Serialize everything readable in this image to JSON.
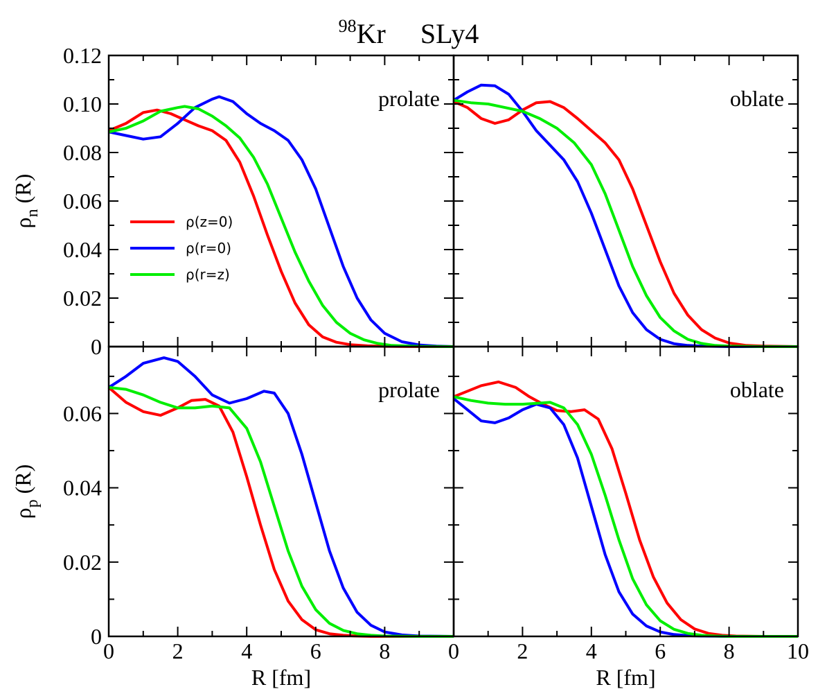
{
  "figure": {
    "title_superscript": "98",
    "title_nucleus": "Kr",
    "title_force": "SLy4"
  },
  "chart_data": [
    {
      "type": "line",
      "panel": "top-left",
      "label": "prolate",
      "ylabel_symbol": "ρ",
      "ylabel_sub": "n",
      "ylabel_arg": " (R)",
      "xlim": [
        0,
        10
      ],
      "ylim": [
        0,
        0.12
      ],
      "yticks": [
        0,
        0.02,
        0.04,
        0.06,
        0.08,
        0.1,
        0.12
      ],
      "yticklabels": [
        "0",
        "0.02",
        "0.04",
        "0.06",
        "0.08",
        "0.10",
        "0.12"
      ],
      "legend": {
        "position": "left-middle",
        "entries": [
          {
            "label": "ρ(z=0)",
            "color": "#ff0000"
          },
          {
            "label": "ρ(r=0)",
            "color": "#0000ff"
          },
          {
            "label": "ρ(r=z)",
            "color": "#00ee00"
          }
        ]
      },
      "series": [
        {
          "name": "ρ(z=0)",
          "color": "#ff0000",
          "x": [
            0,
            0.5,
            1.0,
            1.4,
            1.8,
            2.2,
            2.6,
            3.0,
            3.4,
            3.8,
            4.2,
            4.6,
            5.0,
            5.4,
            5.8,
            6.2,
            6.6,
            7.0,
            7.5,
            8.0,
            9.0,
            10.0
          ],
          "y": [
            0.089,
            0.092,
            0.0965,
            0.0975,
            0.096,
            0.0935,
            0.091,
            0.089,
            0.085,
            0.076,
            0.062,
            0.046,
            0.031,
            0.018,
            0.009,
            0.004,
            0.0018,
            0.0008,
            0.0003,
            0.0001,
            0,
            0
          ]
        },
        {
          "name": "ρ(r=0)",
          "color": "#0000ff",
          "x": [
            0,
            0.5,
            1.0,
            1.5,
            2.0,
            2.5,
            3.0,
            3.2,
            3.6,
            4.0,
            4.4,
            4.8,
            5.2,
            5.6,
            6.0,
            6.4,
            6.8,
            7.2,
            7.6,
            8.0,
            8.5,
            9.0,
            9.5,
            10.0
          ],
          "y": [
            0.0885,
            0.087,
            0.0855,
            0.0865,
            0.092,
            0.0985,
            0.102,
            0.103,
            0.101,
            0.096,
            0.092,
            0.089,
            0.085,
            0.077,
            0.065,
            0.049,
            0.033,
            0.02,
            0.011,
            0.0055,
            0.002,
            0.0007,
            0.0002,
            0
          ]
        },
        {
          "name": "ρ(r=z)",
          "color": "#00ee00",
          "x": [
            0,
            0.5,
            1.0,
            1.5,
            2.0,
            2.2,
            2.6,
            3.0,
            3.4,
            3.8,
            4.2,
            4.6,
            5.0,
            5.4,
            5.8,
            6.2,
            6.6,
            7.0,
            7.4,
            7.8,
            8.2,
            9.0,
            10.0
          ],
          "y": [
            0.0885,
            0.09,
            0.093,
            0.097,
            0.0985,
            0.099,
            0.098,
            0.095,
            0.091,
            0.086,
            0.078,
            0.067,
            0.053,
            0.039,
            0.027,
            0.017,
            0.01,
            0.0055,
            0.0028,
            0.0013,
            0.0005,
            0.0001,
            0
          ]
        }
      ]
    },
    {
      "type": "line",
      "panel": "top-right",
      "label": "oblate",
      "xlim": [
        0,
        10
      ],
      "ylim": [
        0,
        0.12
      ],
      "series": [
        {
          "name": "ρ(z=0)",
          "color": "#ff0000",
          "x": [
            0,
            0.4,
            0.8,
            1.2,
            1.6,
            2.0,
            2.4,
            2.8,
            3.2,
            3.6,
            4.0,
            4.4,
            4.8,
            5.2,
            5.6,
            6.0,
            6.4,
            6.8,
            7.2,
            7.6,
            8.0,
            8.5,
            9.0,
            10.0
          ],
          "y": [
            0.101,
            0.0985,
            0.094,
            0.092,
            0.0935,
            0.0975,
            0.1005,
            0.101,
            0.0985,
            0.094,
            0.089,
            0.084,
            0.077,
            0.065,
            0.05,
            0.035,
            0.022,
            0.013,
            0.007,
            0.0035,
            0.0015,
            0.0005,
            0.0002,
            0
          ]
        },
        {
          "name": "ρ(r=0)",
          "color": "#0000ff",
          "x": [
            0,
            0.4,
            0.8,
            1.2,
            1.6,
            2.0,
            2.4,
            2.8,
            3.2,
            3.6,
            4.0,
            4.4,
            4.8,
            5.2,
            5.6,
            6.0,
            6.4,
            6.8,
            7.2,
            8.0,
            9.0,
            10.0
          ],
          "y": [
            0.1015,
            0.105,
            0.1078,
            0.1075,
            0.104,
            0.097,
            0.089,
            0.083,
            0.077,
            0.068,
            0.055,
            0.04,
            0.025,
            0.014,
            0.007,
            0.003,
            0.0012,
            0.0005,
            0.0002,
            0,
            0,
            0
          ]
        },
        {
          "name": "ρ(r=z)",
          "color": "#00ee00",
          "x": [
            0,
            0.5,
            1.0,
            1.5,
            2.0,
            2.5,
            3.0,
            3.5,
            4.0,
            4.4,
            4.8,
            5.2,
            5.6,
            6.0,
            6.4,
            6.8,
            7.2,
            7.6,
            8.0,
            9.0,
            10.0
          ],
          "y": [
            0.1015,
            0.1005,
            0.1,
            0.0985,
            0.097,
            0.094,
            0.09,
            0.084,
            0.075,
            0.063,
            0.048,
            0.033,
            0.021,
            0.012,
            0.0065,
            0.003,
            0.0013,
            0.0005,
            0.0002,
            0,
            0
          ]
        }
      ]
    },
    {
      "type": "line",
      "panel": "bottom-left",
      "label": "prolate",
      "ylabel_symbol": "ρ",
      "ylabel_sub": "p",
      "ylabel_arg": " (R)",
      "xlabel": "R [fm]",
      "xlim": [
        0,
        10
      ],
      "ylim": [
        0,
        0.078
      ],
      "xticks": [
        0,
        2,
        4,
        6,
        8
      ],
      "xticklabels": [
        "0",
        "2",
        "4",
        "6",
        "8"
      ],
      "yticks": [
        0,
        0.02,
        0.04,
        0.06
      ],
      "yticklabels": [
        "0",
        "0.02",
        "0.04",
        "0.06"
      ],
      "series": [
        {
          "name": "ρ(z=0)",
          "color": "#ff0000",
          "x": [
            0,
            0.5,
            1.0,
            1.5,
            2.0,
            2.4,
            2.8,
            3.2,
            3.6,
            4.0,
            4.4,
            4.8,
            5.2,
            5.6,
            6.0,
            6.4,
            6.8,
            7.2,
            7.6,
            8.0,
            9.0,
            10.0
          ],
          "y": [
            0.067,
            0.063,
            0.0605,
            0.0595,
            0.0615,
            0.0635,
            0.0638,
            0.062,
            0.055,
            0.043,
            0.03,
            0.018,
            0.0095,
            0.0045,
            0.0018,
            0.0007,
            0.0003,
            0.0001,
            0,
            0,
            0,
            0
          ]
        },
        {
          "name": "ρ(r=0)",
          "color": "#0000ff",
          "x": [
            0,
            0.5,
            1.0,
            1.6,
            2.0,
            2.5,
            3.0,
            3.5,
            4.0,
            4.5,
            4.8,
            5.2,
            5.6,
            6.0,
            6.4,
            6.8,
            7.2,
            7.6,
            8.0,
            8.5,
            9.0,
            10.0
          ],
          "y": [
            0.067,
            0.07,
            0.0735,
            0.075,
            0.074,
            0.07,
            0.065,
            0.0628,
            0.064,
            0.066,
            0.0655,
            0.06,
            0.049,
            0.036,
            0.023,
            0.013,
            0.0065,
            0.003,
            0.0012,
            0.0004,
            0.0001,
            0
          ]
        },
        {
          "name": "ρ(r=z)",
          "color": "#00ee00",
          "x": [
            0,
            0.5,
            1.0,
            1.5,
            2.0,
            2.5,
            3.0,
            3.5,
            4.0,
            4.4,
            4.8,
            5.2,
            5.6,
            6.0,
            6.4,
            6.8,
            7.2,
            7.6,
            8.0,
            9.0,
            10.0
          ],
          "y": [
            0.067,
            0.0665,
            0.065,
            0.063,
            0.0615,
            0.0615,
            0.062,
            0.0615,
            0.056,
            0.047,
            0.035,
            0.023,
            0.0135,
            0.0072,
            0.0035,
            0.0016,
            0.0007,
            0.0003,
            0.0001,
            0,
            0
          ]
        }
      ]
    },
    {
      "type": "line",
      "panel": "bottom-right",
      "label": "oblate",
      "xlabel": "R [fm]",
      "xlim": [
        0,
        10
      ],
      "ylim": [
        0,
        0.078
      ],
      "xticks": [
        0,
        2,
        4,
        6,
        8,
        10
      ],
      "xticklabels": [
        "0",
        "2",
        "4",
        "6",
        "8",
        "10"
      ],
      "series": [
        {
          "name": "ρ(z=0)",
          "color": "#ff0000",
          "x": [
            0,
            0.4,
            0.8,
            1.3,
            1.8,
            2.2,
            2.6,
            3.0,
            3.4,
            3.8,
            4.2,
            4.6,
            5.0,
            5.4,
            5.8,
            6.2,
            6.6,
            7.0,
            7.4,
            7.8,
            8.2,
            9.0,
            10.0
          ],
          "y": [
            0.0645,
            0.066,
            0.0675,
            0.0685,
            0.067,
            0.0645,
            0.0625,
            0.0608,
            0.0605,
            0.061,
            0.0585,
            0.0505,
            0.0385,
            0.026,
            0.016,
            0.009,
            0.0045,
            0.002,
            0.0008,
            0.0003,
            0.0001,
            0,
            0
          ]
        },
        {
          "name": "ρ(r=0)",
          "color": "#0000ff",
          "x": [
            0,
            0.4,
            0.8,
            1.2,
            1.6,
            2.0,
            2.4,
            2.8,
            3.2,
            3.6,
            4.0,
            4.4,
            4.8,
            5.2,
            5.6,
            6.0,
            6.4,
            6.8,
            7.2,
            8.0,
            9.0,
            10.0
          ],
          "y": [
            0.064,
            0.061,
            0.058,
            0.0575,
            0.0588,
            0.061,
            0.0625,
            0.0615,
            0.057,
            0.048,
            0.035,
            0.022,
            0.012,
            0.006,
            0.0028,
            0.0012,
            0.0005,
            0.0002,
            0.0001,
            0,
            0,
            0
          ]
        },
        {
          "name": "ρ(r=z)",
          "color": "#00ee00",
          "x": [
            0,
            0.5,
            1.0,
            1.5,
            2.0,
            2.5,
            2.8,
            3.2,
            3.6,
            4.0,
            4.4,
            4.8,
            5.2,
            5.6,
            6.0,
            6.4,
            6.8,
            7.2,
            7.6,
            8.0,
            9.0,
            10.0
          ],
          "y": [
            0.0645,
            0.0635,
            0.0628,
            0.0625,
            0.0625,
            0.0628,
            0.063,
            0.0615,
            0.057,
            0.049,
            0.038,
            0.026,
            0.0155,
            0.0085,
            0.0042,
            0.0019,
            0.0008,
            0.0003,
            0.0001,
            0,
            0,
            0
          ]
        }
      ]
    }
  ]
}
